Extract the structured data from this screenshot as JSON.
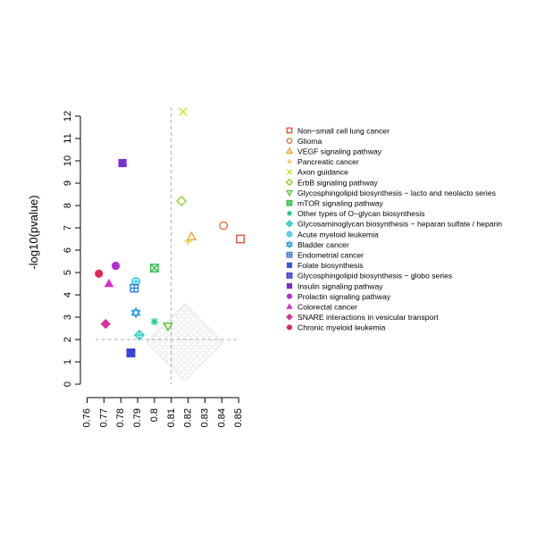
{
  "chart_data": {
    "type": "scatter",
    "title": "",
    "xlabel": "",
    "ylabel": "-log10(pvalue)",
    "xlim": [
      0.755,
      0.852
    ],
    "ylim": [
      0,
      12.4
    ],
    "x_ticks": [
      "0.76",
      "0.77",
      "0.78",
      "0.79",
      "0.8",
      "0.81",
      "0.82",
      "0.83",
      "0.84",
      "0.85"
    ],
    "x_tick_values": [
      0.76,
      0.77,
      0.78,
      0.79,
      0.8,
      0.81,
      0.82,
      0.83,
      0.84,
      0.85
    ],
    "y_ticks": [
      "0",
      "1",
      "2",
      "3",
      "4",
      "5",
      "6",
      "7",
      "8",
      "9",
      "10",
      "11",
      "12"
    ],
    "y_tick_values": [
      0,
      1,
      2,
      3,
      4,
      5,
      6,
      7,
      8,
      9,
      10,
      11,
      12
    ],
    "reference_lines": {
      "x": 0.81,
      "y": 2
    },
    "grid": false,
    "legend_position": "right",
    "series": [
      {
        "name": "Non−small cell lung cancer",
        "x": 0.851,
        "y": 6.5,
        "shape": "square",
        "color": "#e5533a"
      },
      {
        "name": "Glioma",
        "x": 0.841,
        "y": 7.1,
        "shape": "circle",
        "color": "#e8743b"
      },
      {
        "name": "VEGF signaling pathway",
        "x": 0.822,
        "y": 6.6,
        "shape": "triangle",
        "color": "#f0a030"
      },
      {
        "name": "Pancreatic cancer",
        "x": 0.82,
        "y": 6.4,
        "shape": "plus",
        "color": "#f5c83a"
      },
      {
        "name": "Axon guidance",
        "x": 0.817,
        "y": 12.2,
        "shape": "cross",
        "color": "#cfe02a"
      },
      {
        "name": "ErbB signaling pathway",
        "x": 0.816,
        "y": 8.2,
        "shape": "diamond",
        "color": "#8ed12c"
      },
      {
        "name": "Glycosphingolipid biosynthesis − lacto and neolacto series",
        "x": 0.808,
        "y": 2.6,
        "shape": "triangle-down",
        "color": "#55c832"
      },
      {
        "name": "mTOR signaling pathway",
        "x": 0.8,
        "y": 5.2,
        "shape": "square-x",
        "color": "#2ec04a"
      },
      {
        "name": "Other types of O−glycan biosynthesis",
        "x": 0.8,
        "y": 2.8,
        "shape": "asterisk",
        "color": "#22c98a"
      },
      {
        "name": "Glycosaminoglycan biosynthesis − heparan sulfate / heparin",
        "x": 0.791,
        "y": 2.2,
        "shape": "diamond-plus",
        "color": "#25cfc0"
      },
      {
        "name": "Acute myeloid leukemia",
        "x": 0.789,
        "y": 4.6,
        "shape": "circle-plus",
        "color": "#2ec8e8"
      },
      {
        "name": "Bladder cancer",
        "x": 0.789,
        "y": 3.2,
        "shape": "star-david",
        "color": "#2a9fe8"
      },
      {
        "name": "Endometrial cancer",
        "x": 0.788,
        "y": 4.3,
        "shape": "square-plus",
        "color": "#2f78e0"
      },
      {
        "name": "Folate biosynthesis",
        "x": 0.786,
        "y": 1.4,
        "shape": "square-filled",
        "color": "#3a55dc"
      },
      {
        "name": "Glycosphingolipid biosynthesis − globo series",
        "x": 0.786,
        "y": 1.4,
        "shape": "square-x",
        "color": "#3838d8"
      },
      {
        "name": "Insulin signaling pathway",
        "x": 0.781,
        "y": 9.9,
        "shape": "square-filled",
        "color": "#7a2fd6"
      },
      {
        "name": "Prolactin signaling pathway",
        "x": 0.777,
        "y": 5.3,
        "shape": "circle-filled",
        "color": "#b12fd8"
      },
      {
        "name": "Colorectal cancer",
        "x": 0.773,
        "y": 4.5,
        "shape": "triangle-filled",
        "color": "#d82fcf"
      },
      {
        "name": "SNARE interactions in vesicular transport",
        "x": 0.771,
        "y": 2.7,
        "shape": "diamond-filled",
        "color": "#dc2f98"
      },
      {
        "name": "Chronic myeloid leukemia",
        "x": 0.767,
        "y": 4.95,
        "shape": "circle-filled",
        "color": "#e02a58"
      }
    ]
  }
}
